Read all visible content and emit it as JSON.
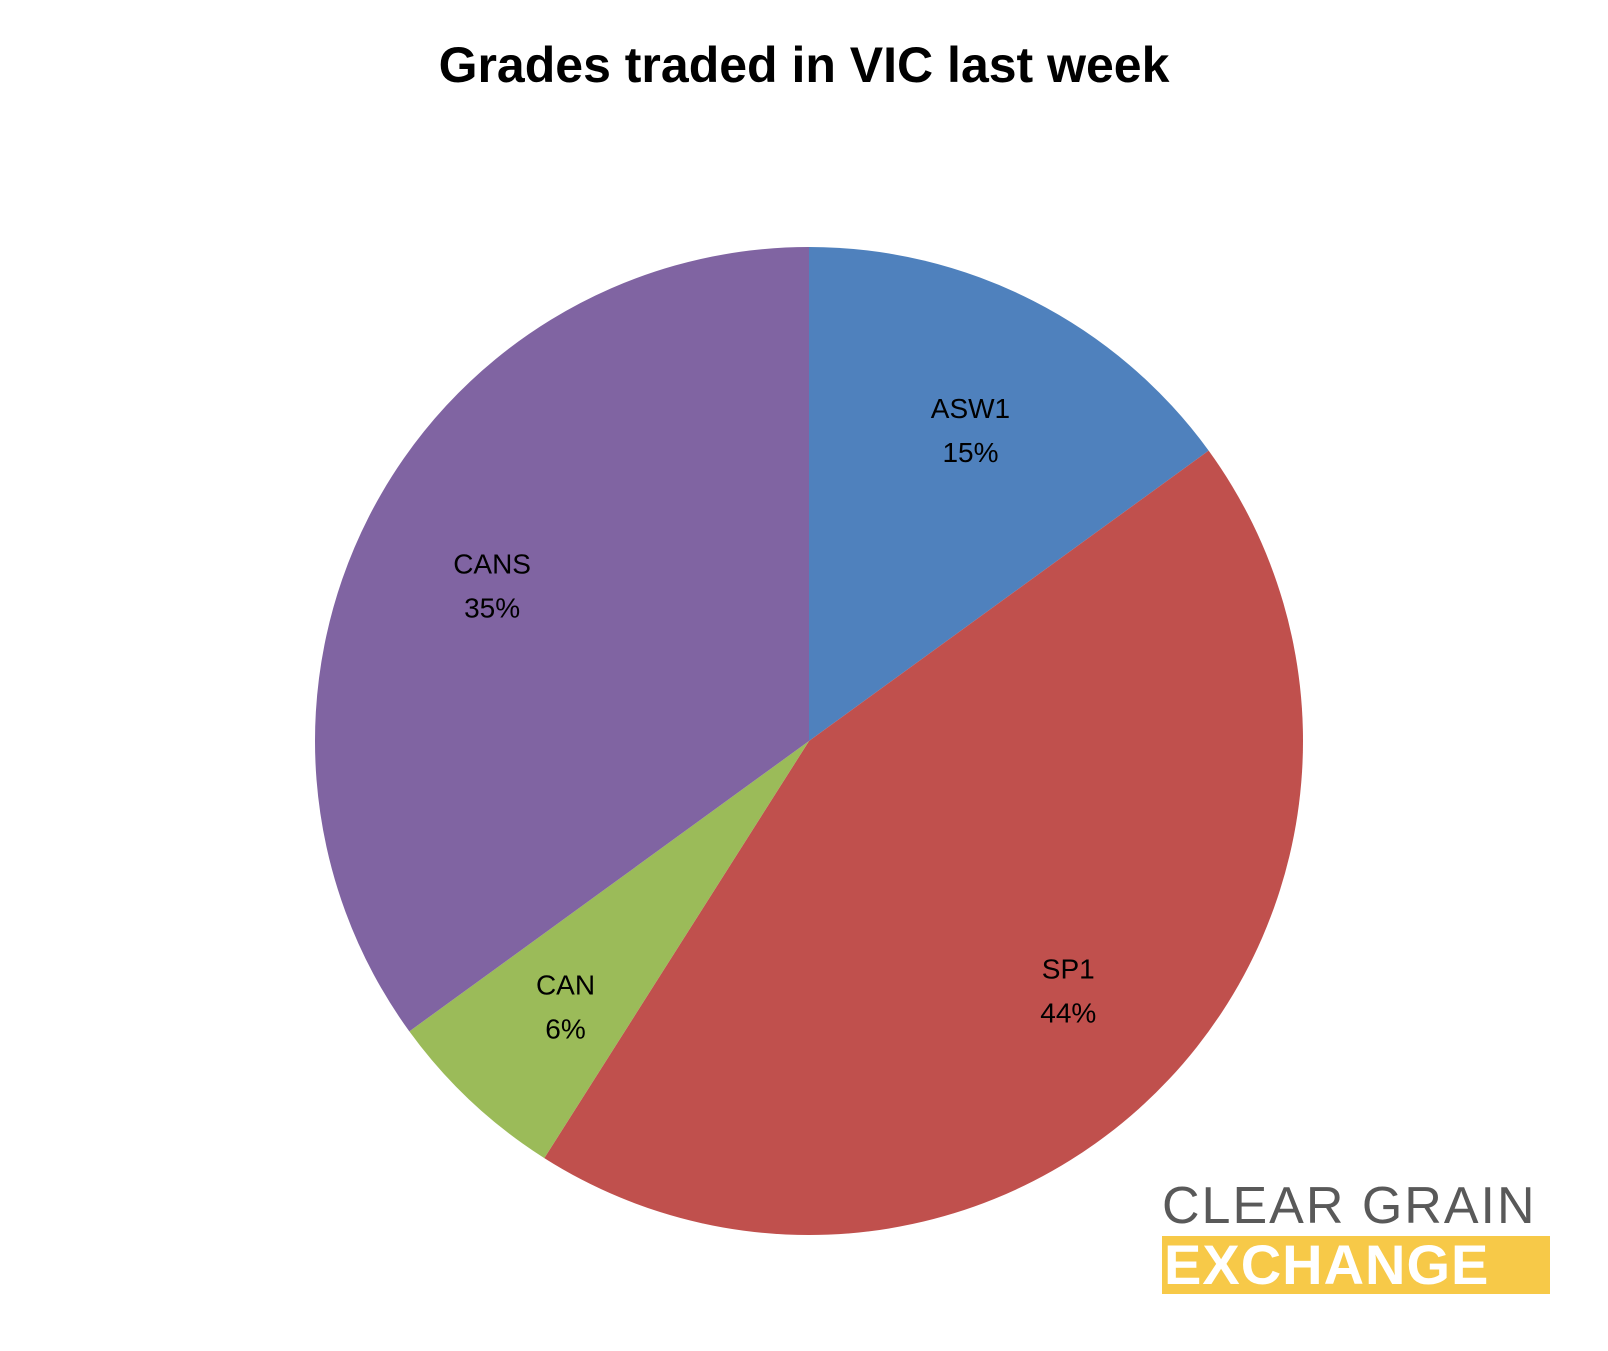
{
  "chart_data": {
    "type": "pie",
    "title": "Grades traded in VIC last week",
    "slices": [
      {
        "label": "ASW1",
        "value": 15,
        "percent_label": "15%",
        "color": "#4F81BD"
      },
      {
        "label": "SP1",
        "value": 44,
        "percent_label": "44%",
        "color": "#C0504D"
      },
      {
        "label": "CAN",
        "value": 6,
        "percent_label": "6%",
        "color": "#9BBB59"
      },
      {
        "label": "CANS",
        "value": 35,
        "percent_label": "35%",
        "color": "#8064A2"
      }
    ],
    "start_angle": "12 o'clock",
    "direction": "clockwise",
    "legend": "none"
  },
  "logo": {
    "line1": "CLEAR GRAIN",
    "line2": "EXCHANGE",
    "line1_color": "#595959",
    "line2_bg": "#F7C948",
    "line2_text_color": "#FFFFFF"
  }
}
